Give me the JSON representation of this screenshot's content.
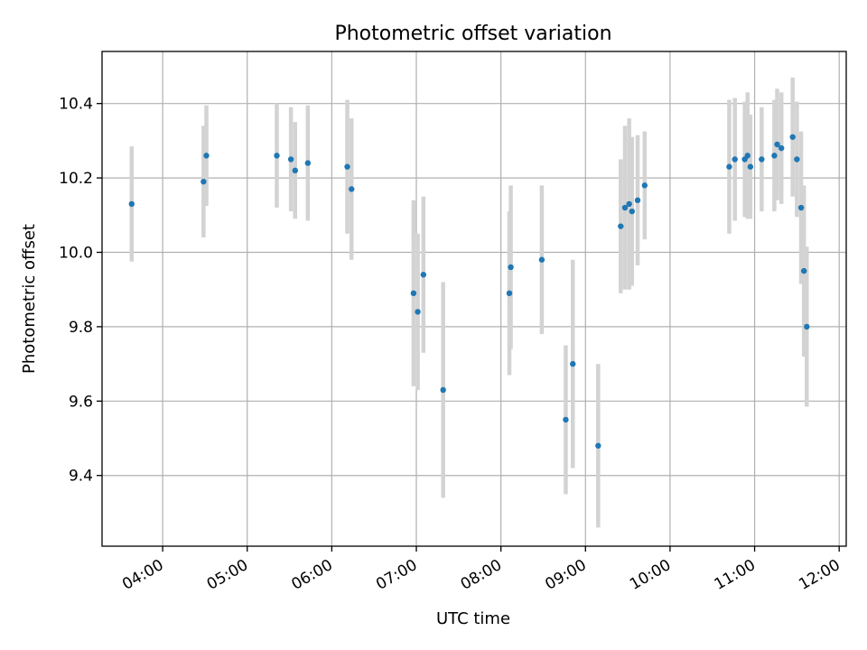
{
  "chart_data": {
    "type": "scatter",
    "title": "Photometric offset variation",
    "xlabel": "UTC time",
    "ylabel": "Photometric offset",
    "x_ticks": [
      "04:00",
      "05:00",
      "06:00",
      "07:00",
      "08:00",
      "09:00",
      "10:00",
      "11:00",
      "12:00"
    ],
    "y_ticks": [
      "9.4",
      "9.6",
      "9.8",
      "10.0",
      "10.2",
      "10.4"
    ],
    "xlim": [
      "03:17",
      "12:05"
    ],
    "ylim": [
      9.21,
      10.54
    ],
    "grid": true,
    "colors": {
      "points": "#1f77b4",
      "error_bars": "#d3d3d3"
    },
    "points": [
      {
        "t": "03:38",
        "y": 10.13,
        "err": 0.155
      },
      {
        "t": "04:29",
        "y": 10.19,
        "err": 0.15
      },
      {
        "t": "04:31",
        "y": 10.26,
        "err": 0.135
      },
      {
        "t": "05:21",
        "y": 10.26,
        "err": 0.14
      },
      {
        "t": "05:31",
        "y": 10.25,
        "err": 0.14
      },
      {
        "t": "05:34",
        "y": 10.22,
        "err": 0.13
      },
      {
        "t": "05:43",
        "y": 10.24,
        "err": 0.155
      },
      {
        "t": "06:11",
        "y": 10.23,
        "err": 0.18
      },
      {
        "t": "06:14",
        "y": 10.17,
        "err": 0.19
      },
      {
        "t": "06:58",
        "y": 9.89,
        "err": 0.25
      },
      {
        "t": "07:01",
        "y": 9.84,
        "err": 0.21
      },
      {
        "t": "07:05",
        "y": 9.94,
        "err": 0.21
      },
      {
        "t": "07:19",
        "y": 9.63,
        "err": 0.29
      },
      {
        "t": "08:06",
        "y": 9.89,
        "err": 0.22
      },
      {
        "t": "08:07",
        "y": 9.96,
        "err": 0.22
      },
      {
        "t": "08:29",
        "y": 9.98,
        "err": 0.2
      },
      {
        "t": "08:46",
        "y": 9.55,
        "err": 0.2
      },
      {
        "t": "08:51",
        "y": 9.7,
        "err": 0.28
      },
      {
        "t": "09:09",
        "y": 9.48,
        "err": 0.22
      },
      {
        "t": "09:25",
        "y": 10.07,
        "err": 0.18
      },
      {
        "t": "09:28",
        "y": 10.12,
        "err": 0.22
      },
      {
        "t": "09:31",
        "y": 10.13,
        "err": 0.23
      },
      {
        "t": "09:33",
        "y": 10.11,
        "err": 0.2
      },
      {
        "t": "09:37",
        "y": 10.14,
        "err": 0.175
      },
      {
        "t": "09:42",
        "y": 10.18,
        "err": 0.145
      },
      {
        "t": "10:42",
        "y": 10.23,
        "err": 0.18
      },
      {
        "t": "10:46",
        "y": 10.25,
        "err": 0.165
      },
      {
        "t": "10:53",
        "y": 10.25,
        "err": 0.155
      },
      {
        "t": "10:55",
        "y": 10.26,
        "err": 0.17
      },
      {
        "t": "10:57",
        "y": 10.23,
        "err": 0.14
      },
      {
        "t": "11:05",
        "y": 10.25,
        "err": 0.14
      },
      {
        "t": "11:14",
        "y": 10.26,
        "err": 0.15
      },
      {
        "t": "11:16",
        "y": 10.29,
        "err": 0.15
      },
      {
        "t": "11:19",
        "y": 10.28,
        "err": 0.15
      },
      {
        "t": "11:27",
        "y": 10.31,
        "err": 0.16
      },
      {
        "t": "11:30",
        "y": 10.25,
        "err": 0.155
      },
      {
        "t": "11:33",
        "y": 10.12,
        "err": 0.205
      },
      {
        "t": "11:35",
        "y": 9.95,
        "err": 0.23
      },
      {
        "t": "11:37",
        "y": 9.8,
        "err": 0.215
      }
    ]
  }
}
